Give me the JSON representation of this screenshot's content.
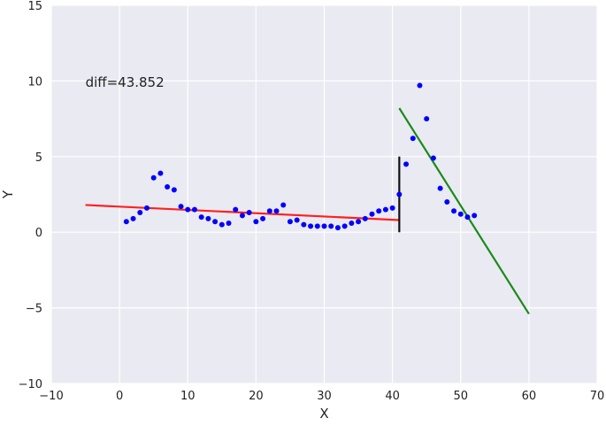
{
  "chart_data": {
    "type": "scatter",
    "title": "",
    "xlabel": "X",
    "ylabel": "Y",
    "xlim": [
      -10,
      70
    ],
    "ylim": [
      -10,
      15
    ],
    "xticks": [
      "−10",
      "0",
      "10",
      "20",
      "30",
      "40",
      "50",
      "60",
      "70"
    ],
    "yticks": [
      "−10",
      "−5",
      "0",
      "5",
      "10",
      "15"
    ],
    "xtick_values": [
      -10,
      0,
      10,
      20,
      30,
      40,
      50,
      60,
      70
    ],
    "ytick_values": [
      -10,
      -5,
      0,
      5,
      10,
      15
    ],
    "grid": true,
    "background": "#eaeaf2",
    "annotation": {
      "text": "diff=43.852",
      "x": -5,
      "y": 9.6
    },
    "series": [
      {
        "kind": "scatter",
        "color": "#0000ff",
        "points": [
          [
            1,
            0.7
          ],
          [
            2,
            0.9
          ],
          [
            3,
            1.3
          ],
          [
            4,
            1.6
          ],
          [
            5,
            3.6
          ],
          [
            6,
            3.9
          ],
          [
            7,
            3.0
          ],
          [
            8,
            2.8
          ],
          [
            9,
            1.7
          ],
          [
            10,
            1.5
          ],
          [
            11,
            1.5
          ],
          [
            12,
            1.0
          ],
          [
            13,
            0.9
          ],
          [
            14,
            0.7
          ],
          [
            15,
            0.5
          ],
          [
            16,
            0.6
          ],
          [
            17,
            1.5
          ],
          [
            18,
            1.1
          ],
          [
            19,
            1.3
          ],
          [
            20,
            0.7
          ],
          [
            21,
            0.9
          ],
          [
            22,
            1.4
          ],
          [
            23,
            1.4
          ],
          [
            24,
            1.8
          ],
          [
            25,
            0.7
          ],
          [
            26,
            0.8
          ],
          [
            27,
            0.5
          ],
          [
            28,
            0.4
          ],
          [
            29,
            0.4
          ],
          [
            30,
            0.4
          ],
          [
            31,
            0.4
          ],
          [
            32,
            0.3
          ],
          [
            33,
            0.4
          ],
          [
            34,
            0.6
          ],
          [
            35,
            0.7
          ],
          [
            36,
            0.9
          ],
          [
            37,
            1.2
          ],
          [
            38,
            1.4
          ],
          [
            39,
            1.5
          ],
          [
            40,
            1.6
          ],
          [
            41,
            2.5
          ],
          [
            42,
            4.5
          ],
          [
            43,
            6.2
          ],
          [
            44,
            9.7
          ],
          [
            45,
            7.5
          ],
          [
            46,
            4.9
          ],
          [
            47,
            2.9
          ],
          [
            48,
            2.0
          ],
          [
            49,
            1.4
          ],
          [
            50,
            1.2
          ],
          [
            51,
            1.0
          ],
          [
            52,
            1.1
          ]
        ]
      },
      {
        "kind": "line",
        "color": "#ff2020",
        "points": [
          [
            -5,
            1.8
          ],
          [
            41,
            0.8
          ]
        ]
      },
      {
        "kind": "line",
        "color": "#111111",
        "points": [
          [
            41,
            0
          ],
          [
            41,
            5
          ]
        ]
      },
      {
        "kind": "line",
        "color": "#1a8a1a",
        "points": [
          [
            41,
            8.2
          ],
          [
            60,
            -5.4
          ]
        ]
      }
    ]
  }
}
